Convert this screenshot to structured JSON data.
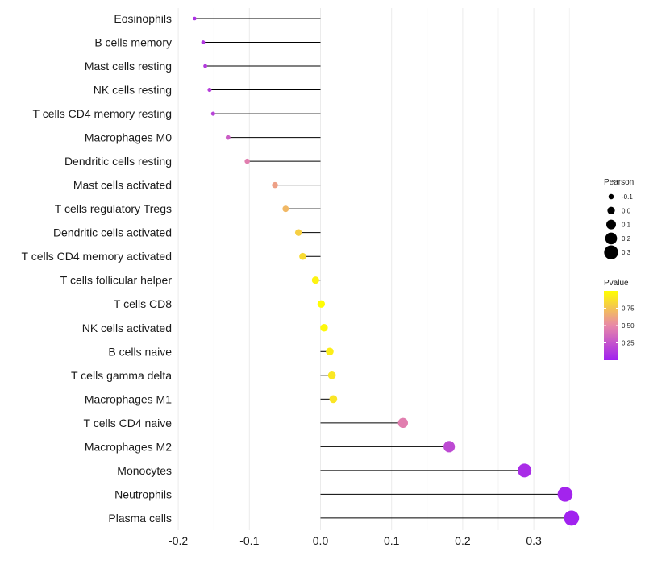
{
  "chart_data": {
    "type": "lollipop",
    "title": "",
    "xlabel": "",
    "ylabel": "",
    "xlim": [
      -0.2,
      0.37
    ],
    "xticks": [
      -0.2,
      -0.1,
      0.0,
      0.1,
      0.2,
      0.3
    ],
    "xtick_labels": [
      "-0.2",
      "-0.1",
      "0.0",
      "0.1",
      "0.2",
      "0.3"
    ],
    "grid": "vertical",
    "points": [
      {
        "label": "Eosinophils",
        "pearson": -0.177,
        "pvalue": 0.08
      },
      {
        "label": "B cells memory",
        "pearson": -0.165,
        "pvalue": 0.12
      },
      {
        "label": "Mast cells resting",
        "pearson": -0.162,
        "pvalue": 0.13
      },
      {
        "label": "NK cells resting",
        "pearson": -0.156,
        "pvalue": 0.15
      },
      {
        "label": "T cells CD4 memory resting",
        "pearson": -0.151,
        "pvalue": 0.17
      },
      {
        "label": "Macrophages M0",
        "pearson": -0.13,
        "pvalue": 0.3
      },
      {
        "label": "Dendritic cells resting",
        "pearson": -0.103,
        "pvalue": 0.45
      },
      {
        "label": "Mast cells activated",
        "pearson": -0.064,
        "pvalue": 0.6
      },
      {
        "label": "T cells regulatory  Tregs ",
        "pearson": -0.049,
        "pvalue": 0.7
      },
      {
        "label": "Dendritic cells activated",
        "pearson": -0.031,
        "pvalue": 0.8
      },
      {
        "label": "T cells CD4 memory activated",
        "pearson": -0.025,
        "pvalue": 0.85
      },
      {
        "label": "T cells follicular helper",
        "pearson": -0.007,
        "pvalue": 0.95
      },
      {
        "label": "T cells CD8",
        "pearson": 0.001,
        "pvalue": 0.99
      },
      {
        "label": "NK cells activated",
        "pearson": 0.005,
        "pvalue": 0.97
      },
      {
        "label": "B cells naive",
        "pearson": 0.013,
        "pvalue": 0.93
      },
      {
        "label": "T cells gamma delta",
        "pearson": 0.016,
        "pvalue": 0.9
      },
      {
        "label": "Macrophages M1",
        "pearson": 0.018,
        "pvalue": 0.89
      },
      {
        "label": "T cells CD4 naive",
        "pearson": 0.116,
        "pvalue": 0.45
      },
      {
        "label": "Macrophages M2",
        "pearson": 0.181,
        "pvalue": 0.2
      },
      {
        "label": "Monocytes",
        "pearson": 0.287,
        "pvalue": 0.06
      },
      {
        "label": "Neutrophils",
        "pearson": 0.344,
        "pvalue": 0.02
      },
      {
        "label": "Plasma cells",
        "pearson": 0.353,
        "pvalue": 0.01
      }
    ],
    "size_legend": {
      "title": "Pearson",
      "labels": [
        "-0.1",
        "0.0",
        "0.1",
        "0.2",
        "0.3"
      ],
      "values": [
        -0.1,
        0.0,
        0.1,
        0.2,
        0.3
      ]
    },
    "color_legend": {
      "title": "Pvalue",
      "tick_labels": [
        "0.75",
        "0.50",
        "0.25"
      ],
      "tick_values": [
        0.75,
        0.5,
        0.25
      ],
      "range": [
        0.0,
        1.0
      ],
      "colors": [
        "#a020f0",
        "#e888a8",
        "#ffff00"
      ]
    },
    "line_color": "#000000",
    "grid_color": "#ebebeb"
  }
}
